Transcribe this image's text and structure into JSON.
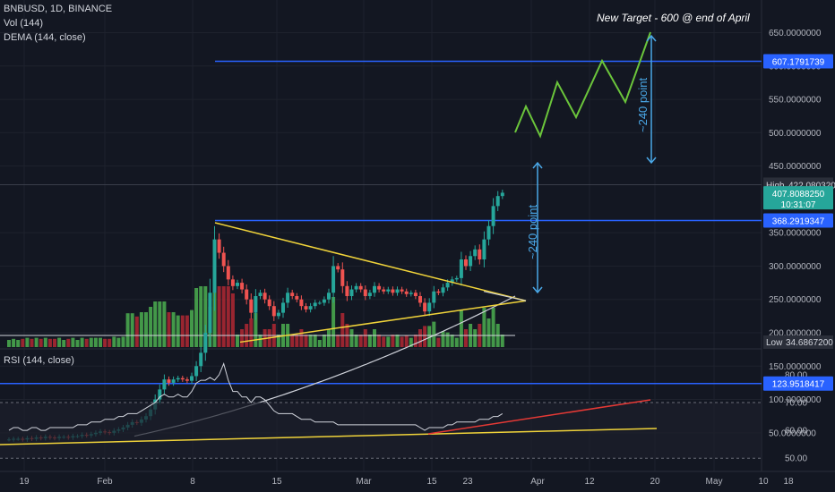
{
  "header": {
    "symbol_line": "BNBUSD, 1D, BINANCE",
    "vol_line": "Vol (144)",
    "dema_line": "DEMA (144, close)",
    "rsi_line": "RSI (144, close)"
  },
  "colors": {
    "background": "#131722",
    "up": "#26a69a",
    "down": "#ef5350",
    "vol_up": "#4caf50",
    "vol_down": "#b22833",
    "level_line": "#2962ff",
    "triangle": "#f0d33a",
    "projection": "#6bc53b",
    "arrow": "#4aa8e8",
    "dema": "#d1d4dc",
    "rsi_trend_red": "#e53935",
    "rsi_trend_yellow": "#f0d33a"
  },
  "annotations": {
    "target_text": "New Target - 600 @ end of April",
    "upper_arrow_label": "~240 point",
    "lower_arrow_label": "~240 point"
  },
  "price_axis": {
    "ticks": [
      "650.0000000",
      "600.0000000",
      "550.0000000",
      "500.0000000",
      "450.0000000",
      "350.0000000",
      "300.0000000",
      "250.0000000",
      "200.0000000",
      "150.0000000",
      "100.0000000",
      "50.0000000"
    ],
    "badges": {
      "level1": "607.1791739",
      "high_label": "High",
      "high_value": "422.0803209",
      "last_price": "407.8088250",
      "countdown": "10:31:07",
      "level2": "368.2919347",
      "level3": "123.9518417",
      "low_label": "Low",
      "low_value": "34.6867200"
    }
  },
  "rsi_axis": {
    "ticks": [
      "80.00",
      "70.00",
      "60.00",
      "50.00"
    ]
  },
  "time_axis": {
    "ticks": [
      "19",
      "Feb",
      "8",
      "15",
      "Mar",
      "15",
      "23",
      "Apr",
      "12",
      "20",
      "May",
      "10",
      "18"
    ]
  },
  "chart_data": {
    "type": "candlestick",
    "title": "BNBUSD, 1D, BINANCE",
    "ylim": [
      30,
      660
    ],
    "horizontal_levels": [
      607.1791739,
      368.2919347,
      123.9518417
    ],
    "high": 422.0803209,
    "low": 34.68672,
    "last_price": 407.808825,
    "closes": [
      40,
      41,
      41,
      40,
      42,
      41,
      43,
      42,
      44,
      43,
      42,
      44,
      44,
      43,
      45,
      45,
      47,
      46,
      48,
      50,
      52,
      51,
      50,
      53,
      55,
      58,
      62,
      66,
      65,
      70,
      75,
      85,
      100,
      115,
      130,
      125,
      130,
      132,
      130,
      128,
      135,
      150,
      170,
      200,
      260,
      340,
      320,
      300,
      280,
      270,
      275,
      265,
      250,
      230,
      255,
      260,
      250,
      240,
      225,
      230,
      245,
      260,
      255,
      250,
      240,
      235,
      240,
      245,
      245,
      250,
      260,
      300,
      295,
      270,
      255,
      265,
      270,
      265,
      255,
      260,
      270,
      265,
      262,
      265,
      260,
      265,
      262,
      258,
      260,
      255,
      245,
      232,
      245,
      262,
      260,
      268,
      275,
      280,
      282,
      310,
      300,
      315,
      325,
      310,
      340,
      360,
      390,
      405,
      410
    ],
    "projection": [
      [
        410,
        355
      ],
      [
        435,
        351
      ],
      [
        398,
        345
      ],
      [
        470,
        330
      ],
      [
        430,
        321
      ],
      [
        530,
        290
      ],
      [
        480,
        277
      ],
      [
        610,
        250
      ]
    ],
    "dema_144": {
      "start": 45,
      "end": 255
    },
    "rsi": {
      "ylim": [
        48,
        88
      ],
      "levels": [
        70,
        50
      ],
      "values": [
        60,
        61,
        61,
        60,
        60,
        61,
        61,
        60,
        60,
        61,
        61,
        61,
        61,
        61,
        61,
        62,
        62,
        62,
        63,
        63,
        63,
        64,
        64,
        64,
        65,
        65,
        66,
        66,
        66,
        67,
        68,
        69,
        70,
        72,
        73,
        72,
        72,
        73,
        72,
        72,
        74,
        77,
        78,
        78,
        79,
        78,
        80,
        84,
        78,
        74,
        74,
        72,
        72,
        70,
        72,
        72,
        71,
        69,
        67,
        66,
        66,
        66,
        66,
        65,
        64,
        64,
        64,
        63,
        63,
        63,
        63,
        63,
        62,
        62,
        62,
        62,
        62,
        62,
        62,
        62,
        62,
        62,
        62,
        62,
        62,
        62,
        62,
        62,
        62,
        62,
        61,
        60,
        61,
        61,
        61,
        61,
        62,
        62,
        63,
        63,
        63,
        63,
        63,
        64,
        64,
        64,
        65,
        65,
        66
      ]
    }
  }
}
